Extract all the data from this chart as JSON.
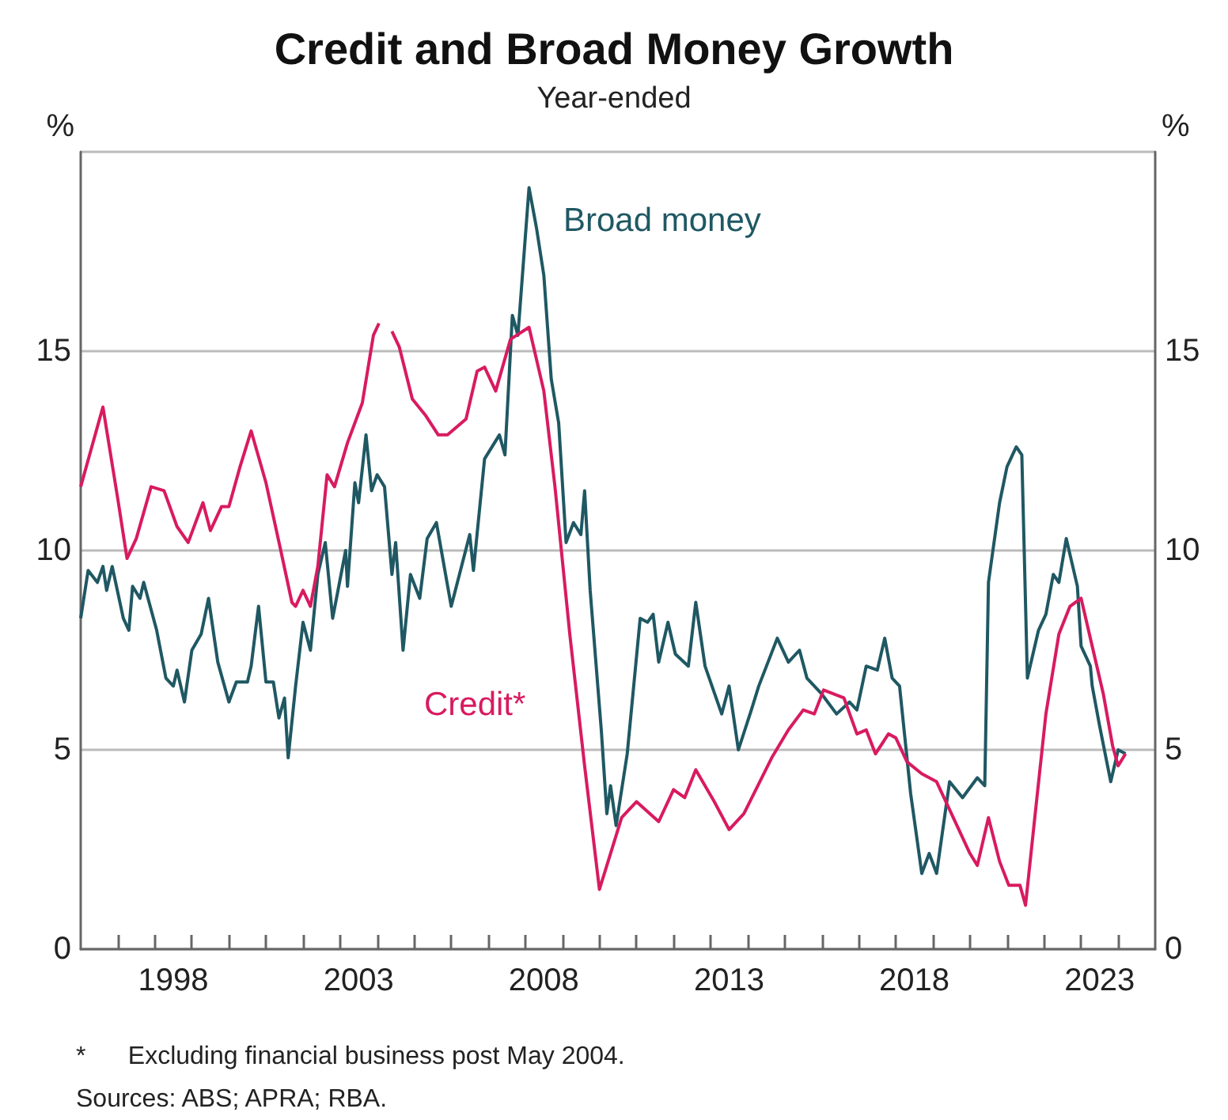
{
  "chart_data": {
    "type": "line",
    "title": "Credit and Broad Money Growth",
    "subtitle": "Year-ended",
    "ylabel": "%",
    "y2label": "%",
    "xlim": [
      1996,
      2025
    ],
    "xticks": [
      {
        "value": 1997,
        "label": null
      },
      {
        "value": 1998,
        "label": null
      },
      {
        "value": 1999,
        "label": null
      },
      {
        "value": 2000,
        "label": null
      },
      {
        "value": 2001,
        "label": null
      },
      {
        "value": 2002,
        "label": null
      },
      {
        "value": 2003,
        "label": null
      },
      {
        "value": 2004,
        "label": null
      },
      {
        "value": 2005,
        "label": null
      },
      {
        "value": 2006,
        "label": null
      },
      {
        "value": 2007,
        "label": null
      },
      {
        "value": 2008,
        "label": null
      },
      {
        "value": 2009,
        "label": null
      },
      {
        "value": 2010,
        "label": null
      },
      {
        "value": 2011,
        "label": null
      },
      {
        "value": 2012,
        "label": null
      },
      {
        "value": 2013,
        "label": null
      },
      {
        "value": 2014,
        "label": null
      },
      {
        "value": 2015,
        "label": null
      },
      {
        "value": 2016,
        "label": null
      },
      {
        "value": 2017,
        "label": null
      },
      {
        "value": 2018,
        "label": null
      },
      {
        "value": 2019,
        "label": null
      },
      {
        "value": 2020,
        "label": null
      },
      {
        "value": 2021,
        "label": null
      },
      {
        "value": 2022,
        "label": null
      },
      {
        "value": 2023,
        "label": null
      },
      {
        "value": 2024,
        "label": null
      },
      {
        "value": 1998.5,
        "label": "1998"
      },
      {
        "value": 2003.5,
        "label": "2003"
      },
      {
        "value": 2008.5,
        "label": "2008"
      },
      {
        "value": 2013.5,
        "label": "2013"
      },
      {
        "value": 2018.5,
        "label": "2018"
      },
      {
        "value": 2023.5,
        "label": "2023"
      }
    ],
    "ylim": [
      0,
      20
    ],
    "yticks": [
      0,
      5,
      10,
      15
    ],
    "y2lim": [
      0,
      20
    ],
    "y2ticks": [
      0,
      5,
      10,
      15
    ],
    "grid": "y",
    "legend": false,
    "marker": "none",
    "line_style": "solid",
    "series": [
      {
        "name": "Broad money",
        "color": "#1f5863",
        "x": [
          1996.0,
          1996.2,
          1996.45,
          1996.6,
          1996.7,
          1996.85,
          1997.15,
          1997.3,
          1997.4,
          1997.6,
          1997.7,
          1998.05,
          1998.3,
          1998.5,
          1998.6,
          1998.8,
          1999.0,
          1999.25,
          1999.45,
          1999.7,
          2000.0,
          2000.2,
          2000.5,
          2000.6,
          2000.8,
          2001.0,
          2001.2,
          2001.35,
          2001.5,
          2001.6,
          2001.8,
          2002.0,
          2002.2,
          2002.4,
          2002.6,
          2002.8,
          2003.15,
          2003.2,
          2003.4,
          2003.5,
          2003.7,
          2003.85,
          2004.0,
          2004.2,
          2004.4,
          2004.5,
          2004.7,
          2004.9,
          2005.15,
          2005.35,
          2005.6,
          2006.0,
          2006.5,
          2006.6,
          2006.9,
          2007.3,
          2007.45,
          2007.65,
          2007.8,
          2008.1,
          2008.3,
          2008.5,
          2008.7,
          2008.9,
          2009.1,
          2009.3,
          2009.5,
          2009.6,
          2009.75,
          2010.05,
          2010.2,
          2010.3,
          2010.45,
          2010.75,
          2011.1,
          2011.3,
          2011.45,
          2011.6,
          2011.85,
          2012.05,
          2012.4,
          2012.6,
          2012.85,
          2013.3,
          2013.5,
          2013.75,
          2014.1,
          2014.3,
          2014.8,
          2015.1,
          2015.4,
          2015.6,
          2016.0,
          2016.4,
          2016.75,
          2016.95,
          2017.2,
          2017.5,
          2017.7,
          2017.9,
          2018.1,
          2018.4,
          2018.7,
          2018.9,
          2019.1,
          2019.45,
          2019.8,
          2020.2,
          2020.4,
          2020.5,
          2020.8,
          2021.0,
          2021.25,
          2021.4,
          2021.55,
          2021.85,
          2022.05,
          2022.25,
          2022.4,
          2022.6,
          2022.9,
          2023.0,
          2023.25,
          2023.3,
          2023.5,
          2023.8,
          2024.0,
          2024.2
        ],
        "values": [
          8.3,
          9.5,
          9.2,
          9.6,
          9.0,
          9.6,
          8.3,
          8.0,
          9.1,
          8.8,
          9.2,
          8.0,
          6.8,
          6.6,
          7.0,
          6.2,
          7.5,
          7.9,
          8.8,
          7.2,
          6.2,
          6.7,
          6.7,
          7.1,
          8.6,
          6.7,
          6.7,
          5.8,
          6.3,
          4.8,
          6.6,
          8.2,
          7.5,
          9.4,
          10.2,
          8.3,
          10.0,
          9.1,
          11.7,
          11.2,
          12.9,
          11.5,
          11.9,
          11.6,
          9.4,
          10.2,
          7.5,
          9.4,
          8.8,
          10.3,
          10.7,
          8.6,
          10.4,
          9.5,
          12.3,
          12.9,
          12.4,
          15.9,
          15.4,
          19.1,
          18.1,
          16.9,
          14.3,
          13.2,
          10.2,
          10.7,
          10.4,
          11.5,
          9.0,
          5.5,
          3.4,
          4.1,
          3.1,
          4.9,
          8.3,
          8.2,
          8.4,
          7.2,
          8.2,
          7.4,
          7.1,
          8.7,
          7.1,
          5.9,
          6.6,
          5.0,
          6.0,
          6.6,
          7.8,
          7.2,
          7.5,
          6.8,
          6.4,
          5.9,
          6.2,
          6.0,
          7.1,
          7.0,
          7.8,
          6.8,
          6.6,
          3.9,
          1.9,
          2.4,
          1.9,
          4.2,
          3.8,
          4.3,
          4.1,
          9.2,
          11.2,
          12.1,
          12.6,
          12.4,
          6.8,
          8.0,
          8.4,
          9.4,
          9.2,
          10.3,
          9.1,
          7.6,
          7.1,
          6.6,
          5.6,
          4.2,
          5.0,
          4.9
        ]
      },
      {
        "name": "Credit*",
        "color": "#d81b60",
        "x": [
          1996.0,
          1996.6,
          1997.0,
          1997.25,
          1997.5,
          1997.9,
          1998.25,
          1998.6,
          1998.9,
          1999.3,
          1999.5,
          1999.8,
          2000.0,
          2000.3,
          2000.6,
          2001.0,
          2001.4,
          2001.7,
          2001.8,
          2002.0,
          2002.2,
          2002.4,
          2002.65,
          2002.85,
          2003.2,
          2003.6,
          2003.9,
          2004.05,
          2004.2,
          2004.4,
          2004.6,
          2004.95,
          2005.3,
          2005.65,
          2005.9,
          2006.4,
          2006.7,
          2006.9,
          2007.2,
          2007.6,
          2008.1,
          2008.5,
          2008.8,
          2009.2,
          2009.6,
          2010.0,
          2010.3,
          2010.6,
          2011.0,
          2011.6,
          2012.0,
          2012.3,
          2012.6,
          2013.1,
          2013.5,
          2013.9,
          2014.65,
          2015.1,
          2015.5,
          2015.8,
          2016.05,
          2016.6,
          2016.95,
          2017.2,
          2017.45,
          2017.8,
          2018.0,
          2018.3,
          2018.7,
          2019.1,
          2019.5,
          2020.0,
          2020.2,
          2020.5,
          2020.8,
          2021.05,
          2021.35,
          2021.5,
          2021.75,
          2022.05,
          2022.4,
          2022.7,
          2023.0,
          2023.3,
          2023.6,
          2023.85,
          2024.0,
          2024.2
        ],
        "values": [
          11.6,
          13.6,
          11.3,
          9.8,
          10.3,
          11.6,
          11.5,
          10.6,
          10.2,
          11.2,
          10.5,
          11.1,
          11.1,
          12.1,
          13.0,
          11.7,
          10.0,
          8.7,
          8.6,
          9.0,
          8.6,
          9.6,
          11.9,
          11.6,
          12.7,
          13.7,
          15.4,
          15.7,
          null,
          15.5,
          15.1,
          13.8,
          13.4,
          12.9,
          12.9,
          13.3,
          14.5,
          14.6,
          14.0,
          15.3,
          15.6,
          14.0,
          11.6,
          7.9,
          4.6,
          1.5,
          2.4,
          3.3,
          3.7,
          3.2,
          4.0,
          3.8,
          4.5,
          3.7,
          3.0,
          3.4,
          4.8,
          5.5,
          6.0,
          5.9,
          6.5,
          6.3,
          5.4,
          5.5,
          4.9,
          5.4,
          5.3,
          4.7,
          4.4,
          4.2,
          3.4,
          2.4,
          2.1,
          3.3,
          2.2,
          1.6,
          1.6,
          1.1,
          3.3,
          5.9,
          7.9,
          8.6,
          8.8,
          7.6,
          6.4,
          5.1,
          4.6,
          4.9
        ]
      }
    ],
    "annotations": [
      "*      Excluding financial business post May 2004.",
      "Sources: ABS; APRA; RBA."
    ]
  }
}
